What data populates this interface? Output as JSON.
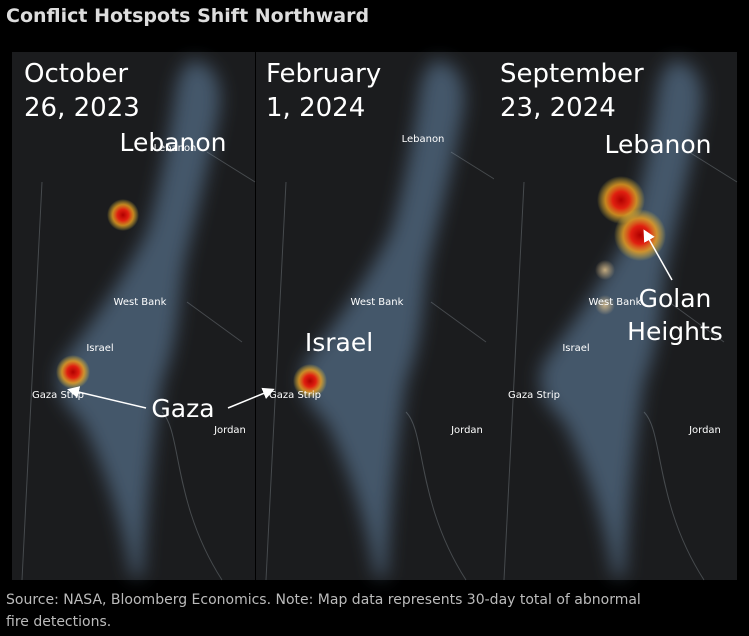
{
  "title": "Conflict Hotspots Shift Northward",
  "panels": [
    {
      "date_lines": [
        "October",
        "26, 2023"
      ],
      "map_labels": [
        "Lebanon",
        "West Bank",
        "Israel",
        "Gaza Strip",
        "Jordan"
      ],
      "callouts": [
        "Lebanon",
        "Gaza"
      ]
    },
    {
      "date_lines": [
        "February",
        "1, 2024"
      ],
      "map_labels": [
        "Lebanon",
        "West Bank",
        "Gaza Strip",
        "Jordan"
      ],
      "callouts": [
        "Israel"
      ]
    },
    {
      "date_lines": [
        "September",
        "23, 2024"
      ],
      "map_labels": [
        "West Bank",
        "Israel",
        "Gaza Strip",
        "Jordan"
      ],
      "callouts": [
        "Lebanon",
        "Golan",
        "Heights"
      ]
    }
  ],
  "source_lines": [
    "Source: NASA, Bloomberg Economics. Note: Map data represents 30-day total of abnormal",
    "fire detections."
  ]
}
